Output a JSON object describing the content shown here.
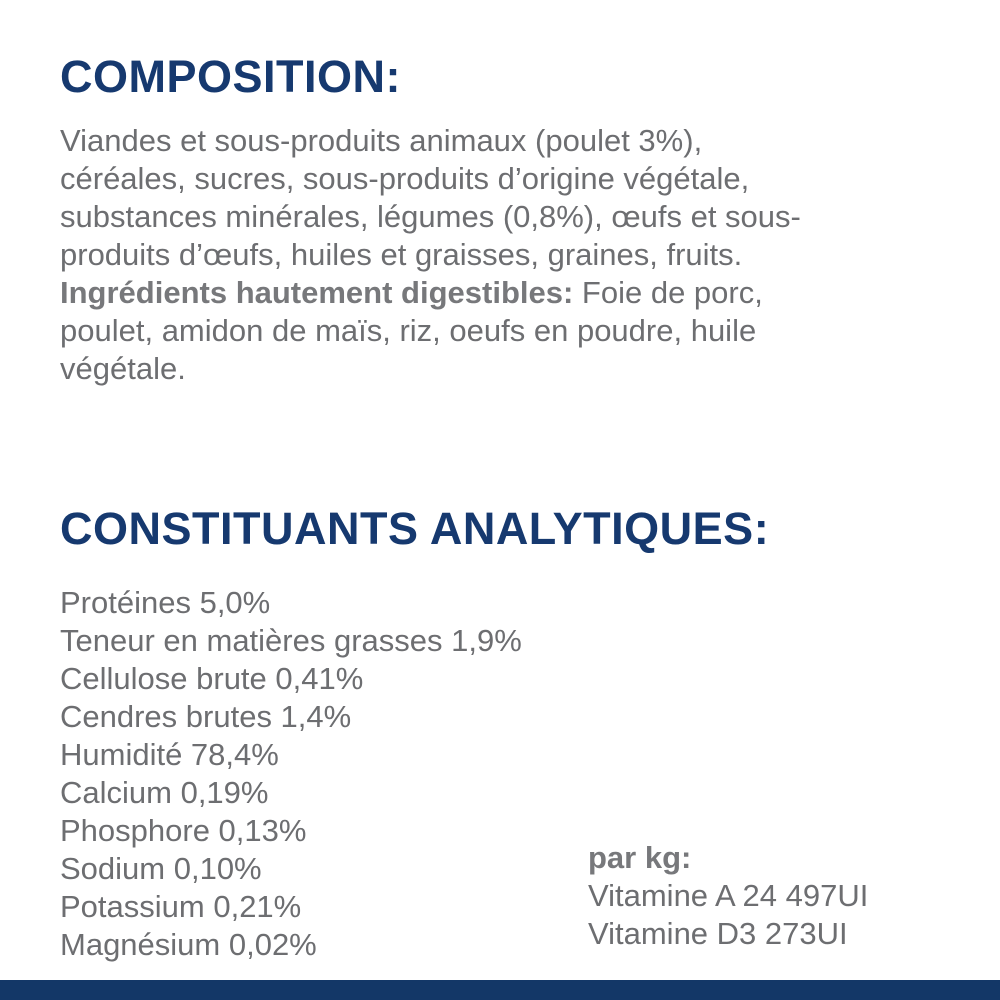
{
  "colors": {
    "heading_navy": "#16396f",
    "body_gray": "#6d6e71",
    "bold_gray": "#77787b",
    "bottom_bar_navy": "#133767",
    "background": "#ffffff"
  },
  "composition": {
    "heading": "COMPOSITION:",
    "lines": [
      "Viandes et sous-produits animaux (poulet 3%),",
      "céréales, sucres, sous-produits d’origine végétale,",
      "substances minérales, légumes (0,8%), œufs et sous-",
      "produits d’œufs, huiles et graisses, graines, fruits."
    ],
    "bold_label": "Ingrédients hautement digestibles:",
    "line5_rest": " Foie de porc,",
    "line6": "poulet, amidon de maïs, riz, oeufs en poudre, huile",
    "line7": "végétale."
  },
  "analytical": {
    "heading": "CONSTITUANTS ANALYTIQUES:",
    "items": [
      "Protéines 5,0%",
      "Teneur en matières grasses 1,9%",
      "Cellulose brute 0,41%",
      "Cendres brutes 1,4%",
      "Humidité 78,4%",
      "Calcium 0,19%",
      "Phosphore 0,13%",
      "Sodium 0,10%",
      "Potassium 0,21%",
      "Magnésium 0,02%"
    ]
  },
  "per_kg": {
    "label": "par kg:",
    "lines": [
      "Vitamine A 24 497UI",
      "Vitamine D3 273UI"
    ]
  }
}
